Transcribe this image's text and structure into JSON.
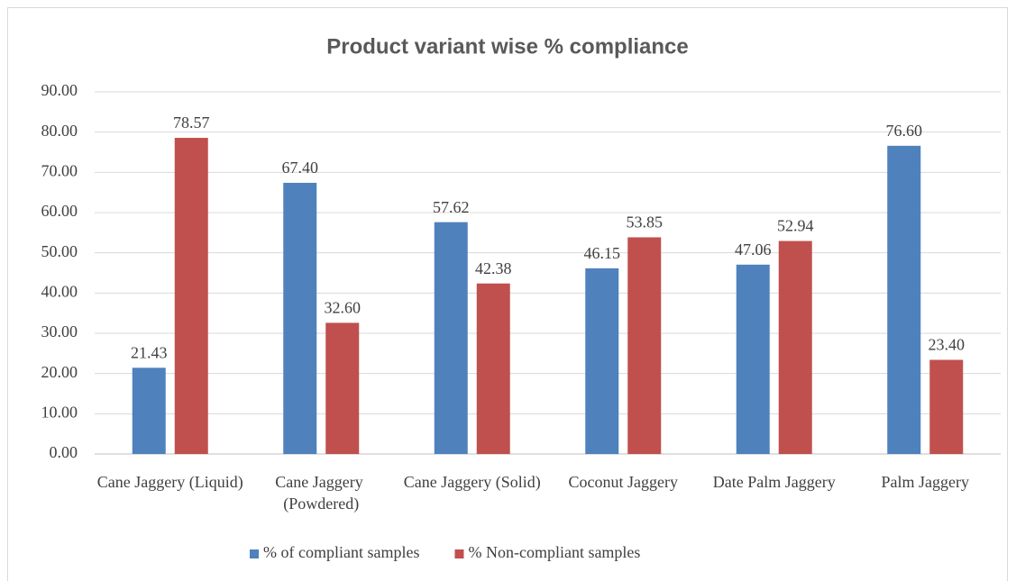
{
  "chart_data": {
    "type": "bar",
    "title": "Product variant wise % compliance",
    "categories": [
      "Cane Jaggery (Liquid)",
      "Cane Jaggery (Powdered)",
      "Cane Jaggery (Solid)",
      "Coconut Jaggery",
      "Date Palm Jaggery",
      "Palm Jaggery"
    ],
    "series": [
      {
        "name": "% of compliant samples",
        "color": "#4f81bd",
        "values": [
          21.43,
          67.4,
          57.62,
          46.15,
          47.06,
          76.6
        ],
        "value_labels": [
          "21.43",
          "67.40",
          "57.62",
          "46.15",
          "47.06",
          "76.60"
        ]
      },
      {
        "name": "% Non-compliant samples",
        "color": "#c0504d",
        "values": [
          78.57,
          32.6,
          42.38,
          53.85,
          52.94,
          23.4
        ],
        "value_labels": [
          "78.57",
          "32.60",
          "42.38",
          "53.85",
          "52.94",
          "23.40"
        ]
      }
    ],
    "ylim": [
      0,
      90
    ],
    "yticks": [
      {
        "value": 0,
        "label": "0.00"
      },
      {
        "value": 10,
        "label": "10.00"
      },
      {
        "value": 20,
        "label": "20.00"
      },
      {
        "value": 30,
        "label": "30.00"
      },
      {
        "value": 40,
        "label": "40.00"
      },
      {
        "value": 50,
        "label": "50.00"
      },
      {
        "value": 60,
        "label": "60.00"
      },
      {
        "value": 70,
        "label": "70.00"
      },
      {
        "value": 80,
        "label": "80.00"
      },
      {
        "value": 90,
        "label": "90.00"
      }
    ],
    "grid": true,
    "legend": "bottom"
  }
}
